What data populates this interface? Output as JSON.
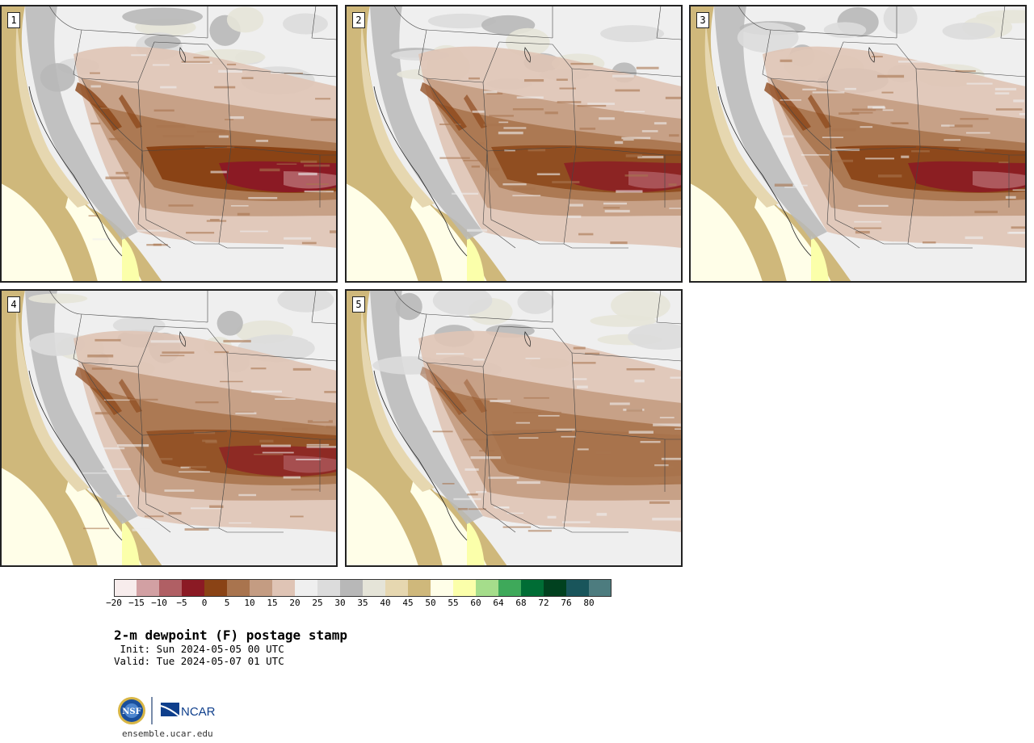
{
  "panels": [
    {
      "label": "1",
      "intensity": 1.0
    },
    {
      "label": "2",
      "intensity": 0.9
    },
    {
      "label": "3",
      "intensity": 0.95
    },
    {
      "label": "4",
      "intensity": 0.85
    },
    {
      "label": "5",
      "intensity": 0.55
    }
  ],
  "colorbar": {
    "colors": [
      "#f7ecec",
      "#d2a0a3",
      "#b05f64",
      "#8b1a24",
      "#8a4315",
      "#a9744e",
      "#c49c82",
      "#dfc4b5",
      "#efefef",
      "#dcdcdc",
      "#b8b8b8",
      "#e5e4d8",
      "#e6d7b0",
      "#cfb87b",
      "#fffee8",
      "#fbffaa",
      "#a5dd8b",
      "#3ea95a",
      "#006d35",
      "#01411f",
      "#19555b",
      "#4d7c7f"
    ],
    "ticks": [
      "−20",
      "−15",
      "−10",
      "−5",
      "0",
      "5",
      "10",
      "15",
      "20",
      "25",
      "30",
      "35",
      "40",
      "45",
      "50",
      "55",
      "60",
      "64",
      "68",
      "72",
      "76",
      "80"
    ]
  },
  "title": "2-m dewpoint (F) postage stamp",
  "init": " Init: Sun 2024-05-05 00 UTC",
  "valid": "Valid: Tue 2024-05-07 01 UTC",
  "logo": {
    "nsf": "NSF",
    "ncar": "NCAR"
  },
  "url": "ensemble.ucar.edu"
}
